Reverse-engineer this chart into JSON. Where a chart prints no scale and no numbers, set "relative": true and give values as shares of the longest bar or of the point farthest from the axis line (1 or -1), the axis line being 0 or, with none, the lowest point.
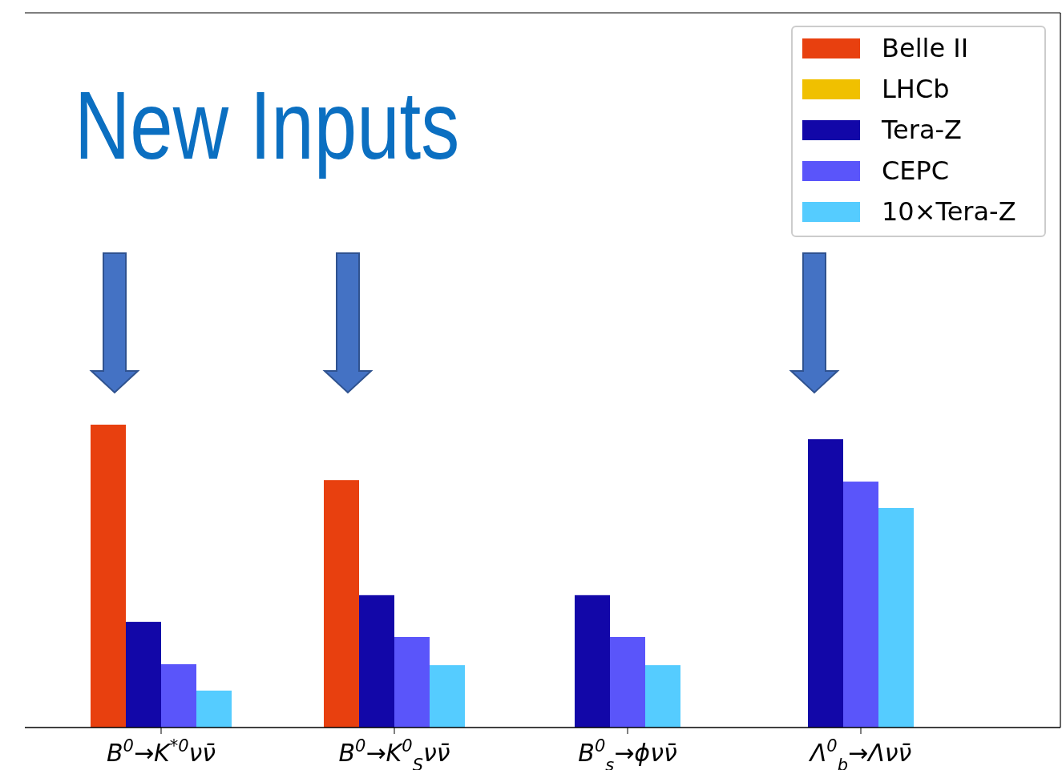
{
  "chart_data": {
    "type": "bar",
    "relative": true,
    "legend": "top right",
    "categories": [
      "B$^{0}$→K$^{*0}$νν̄",
      "B$^{0}$→K$^{0}$$_{S}$νν̄",
      "B$^{0}$$_{s}$→ϕνν̄",
      "Λ$^{0}$$_{b}$→Λνν̄"
    ],
    "series": [
      {
        "name": "Belle II",
        "color": "#e8400f",
        "values": [
          1.0,
          0.817,
          null,
          null
        ]
      },
      {
        "name": "LHCb",
        "color": "#f0c000",
        "values": [
          null,
          null,
          null,
          null
        ]
      },
      {
        "name": "Tera-Z",
        "color": "#1207a8",
        "values": [
          0.349,
          0.437,
          0.437,
          0.952
        ]
      },
      {
        "name": "CEPC",
        "color": "#5a55fa",
        "values": [
          0.209,
          0.299,
          0.299,
          0.812
        ]
      },
      {
        "name": "10×Tera-Z",
        "color": "#55ccff",
        "values": [
          0.122,
          0.206,
          0.206,
          0.725
        ]
      }
    ],
    "annotations": [
      "New Inputs"
    ]
  }
}
